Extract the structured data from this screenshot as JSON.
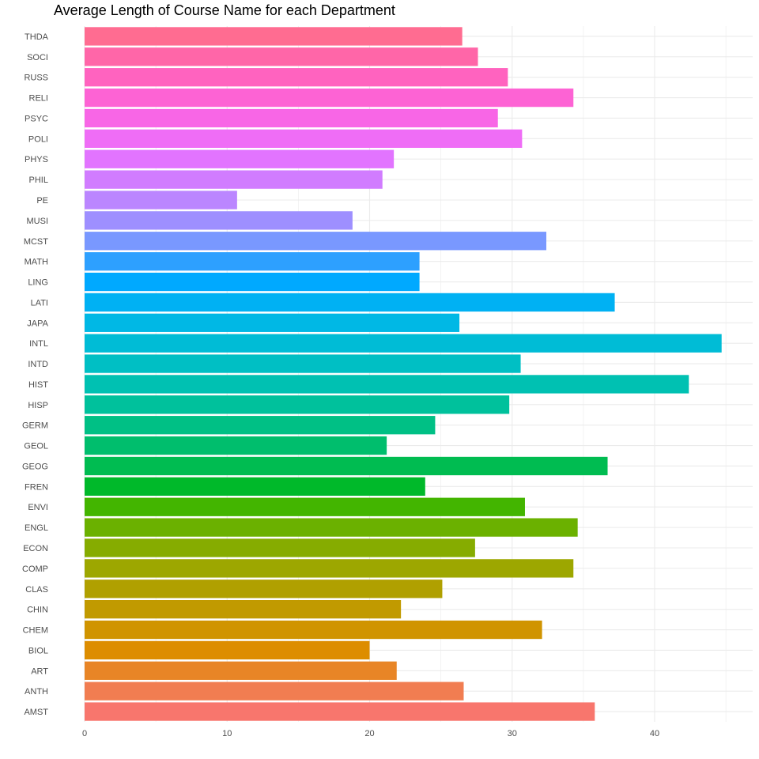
{
  "chart_data": {
    "type": "bar",
    "orientation": "horizontal",
    "title": "Average Length of Course Name for each Department",
    "xlabel": "",
    "ylabel": "",
    "xlim": [
      0,
      45
    ],
    "x_ticks": [
      0,
      10,
      20,
      30,
      40
    ],
    "grid": true,
    "legend": "none",
    "categories": [
      "AMST",
      "ANTH",
      "ART",
      "BIOL",
      "CHEM",
      "CHIN",
      "CLAS",
      "COMP",
      "ECON",
      "ENGL",
      "ENVI",
      "FREN",
      "GEOG",
      "GEOL",
      "GERM",
      "HISP",
      "HIST",
      "INTD",
      "INTL",
      "JAPA",
      "LATI",
      "LING",
      "MATH",
      "MCST",
      "MUSI",
      "PE",
      "PHIL",
      "PHYS",
      "POLI",
      "PSYC",
      "RELI",
      "RUSS",
      "SOCI",
      "THDA"
    ],
    "values": [
      35.8,
      26.6,
      21.9,
      20.0,
      32.1,
      22.2,
      25.1,
      34.3,
      27.4,
      34.6,
      30.9,
      23.9,
      36.7,
      21.2,
      24.6,
      29.8,
      42.4,
      30.6,
      44.7,
      26.3,
      37.2,
      23.5,
      23.5,
      32.4,
      18.8,
      10.7,
      20.9,
      21.7,
      30.7,
      29.0,
      34.3,
      29.7,
      27.6,
      26.5
    ],
    "colors": [
      "#F8766D",
      "#F17D51",
      "#E88526",
      "#DD8D00",
      "#D09400",
      "#C19A00",
      "#B0A000",
      "#9DA700",
      "#86AC00",
      "#6BB100",
      "#43B500",
      "#00B92A",
      "#00BC51",
      "#00BE6D",
      "#00C085",
      "#00C19C",
      "#00C1B2",
      "#00BFC4",
      "#00BCD6",
      "#00B8E5",
      "#00B1F3",
      "#00A9FF",
      "#2DA0FF",
      "#7998FF",
      "#9E8FFF",
      "#BB86FF",
      "#D17CFF",
      "#E274FF",
      "#EF6DF6",
      "#F866E6",
      "#FD63D4",
      "#FF63BF",
      "#FF66A8",
      "#FF6C91"
    ]
  }
}
